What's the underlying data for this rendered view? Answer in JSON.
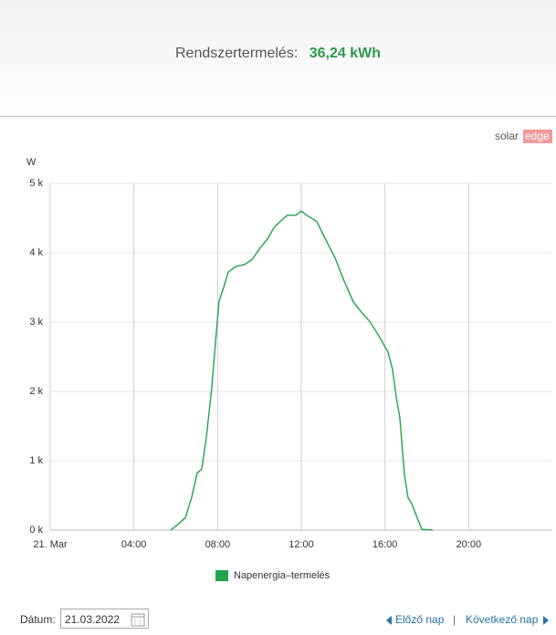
{
  "header": {
    "label": "Rendszertermelés:",
    "value": "36,24 kWh"
  },
  "logo": [
    "solar",
    "edge"
  ],
  "chart_data": {
    "type": "line",
    "y_label": "W",
    "xlim": [
      0,
      24
    ],
    "xticks": [
      {
        "value": 0,
        "label": "21. Mar"
      },
      {
        "value": 4,
        "label": "04:00"
      },
      {
        "value": 8,
        "label": "08:00"
      },
      {
        "value": 12,
        "label": "12:00"
      },
      {
        "value": 16,
        "label": "16:00"
      },
      {
        "value": 20,
        "label": "20:00"
      }
    ],
    "ylim": [
      0,
      5000
    ],
    "yticks": [
      {
        "value": 0,
        "label": "0 k"
      },
      {
        "value": 1000,
        "label": "1 k"
      },
      {
        "value": 2000,
        "label": "2 k"
      },
      {
        "value": 3000,
        "label": "3 k"
      },
      {
        "value": 4000,
        "label": "4 k"
      },
      {
        "value": 5000,
        "label": "5 k"
      }
    ],
    "grid": true,
    "x": [
      5.76,
      6.1,
      6.46,
      6.76,
      7.02,
      7.24,
      7.46,
      7.72,
      7.9,
      8.07,
      8.29,
      8.51,
      8.86,
      9.29,
      9.64,
      10.04,
      10.39,
      10.69,
      11.13,
      11.34,
      11.74,
      12.0,
      12.26,
      12.74,
      13.18,
      13.61,
      14.05,
      14.49,
      14.83,
      15.27,
      15.71,
      16.14,
      16.36,
      16.54,
      16.71,
      16.93,
      17.1,
      17.28,
      17.54,
      17.76,
      18.28
    ],
    "series": [
      {
        "name": "Napenergia–termelés",
        "color": "#22a34e",
        "values": [
          0,
          80,
          180,
          470,
          820,
          880,
          1330,
          2050,
          2710,
          3300,
          3500,
          3720,
          3800,
          3830,
          3900,
          4070,
          4200,
          4360,
          4490,
          4540,
          4540,
          4600,
          4540,
          4450,
          4180,
          3930,
          3590,
          3290,
          3160,
          3010,
          2800,
          2570,
          2320,
          1920,
          1620,
          800,
          470,
          380,
          180,
          10,
          0
        ]
      }
    ]
  },
  "footer": {
    "date_label": "Dátum:",
    "date_value": "21.03.2022",
    "prev": "Előző nap",
    "separator": "|",
    "next": "Következő nap"
  }
}
